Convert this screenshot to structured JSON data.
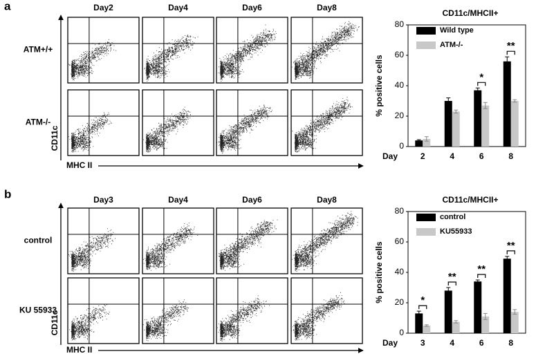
{
  "panels": [
    {
      "label": "a",
      "columns": [
        "Day2",
        "Day4",
        "Day6",
        "Day8"
      ],
      "rows": [
        "ATM+/+",
        "ATM-/-"
      ],
      "y_axis": "CD11c",
      "x_axis": "MHC II"
    },
    {
      "label": "b",
      "columns": [
        "Day3",
        "Day4",
        "Day6",
        "Day8"
      ],
      "rows": [
        "control",
        "KU 55933"
      ],
      "y_axis": "CD11c",
      "x_axis": "MHC II"
    }
  ],
  "chart_data": [
    {
      "type": "bar",
      "title": "CD11c/MHCII+",
      "ylabel": "% positive cells",
      "xlabel": "Day",
      "categories": [
        "2",
        "4",
        "6",
        "8"
      ],
      "series": [
        {
          "name": "Wild type",
          "color": "#000000",
          "values": [
            4,
            30,
            37,
            56
          ],
          "errors": [
            0.5,
            2,
            1.5,
            3
          ]
        },
        {
          "name": "ATM-/-",
          "color": "#c8c8c8",
          "values": [
            5,
            23,
            27,
            30
          ],
          "errors": [
            1.5,
            1,
            2,
            0.8
          ]
        }
      ],
      "ylim": [
        0,
        80
      ],
      "yticks": [
        0,
        20,
        40,
        60,
        80
      ],
      "legend": "top-left",
      "annotations": [
        {
          "category": "6",
          "label": "*"
        },
        {
          "category": "8",
          "label": "**"
        }
      ]
    },
    {
      "type": "bar",
      "title": "CD11c/MHCII+",
      "ylabel": "% positive cells",
      "xlabel": "Day",
      "categories": [
        "3",
        "4",
        "6",
        "8"
      ],
      "series": [
        {
          "name": "control",
          "color": "#000000",
          "values": [
            13,
            28,
            34,
            49
          ],
          "errors": [
            1.5,
            2,
            1,
            1.5
          ]
        },
        {
          "name": "KU55933",
          "color": "#c8c8c8",
          "values": [
            5,
            7.5,
            11,
            14
          ],
          "errors": [
            0.5,
            0.8,
            2,
            1.5
          ]
        }
      ],
      "ylim": [
        0,
        80
      ],
      "yticks": [
        0,
        20,
        40,
        60,
        80
      ],
      "legend": "top-left",
      "annotations": [
        {
          "category": "3",
          "label": "*"
        },
        {
          "category": "4",
          "label": "**"
        },
        {
          "category": "6",
          "label": "**"
        },
        {
          "category": "8",
          "label": "**"
        }
      ]
    }
  ]
}
